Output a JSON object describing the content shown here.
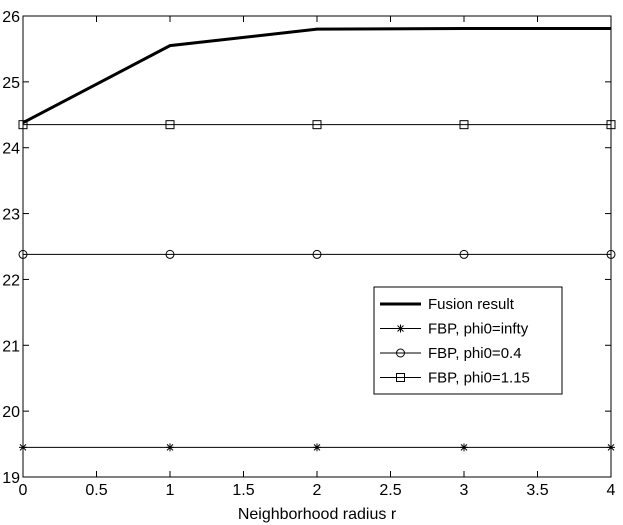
{
  "chart_data": {
    "type": "line",
    "xlabel": "Neighborhood radius r",
    "ylabel": "",
    "xlim": [
      0,
      4
    ],
    "ylim": [
      19,
      26
    ],
    "xticks": [
      "0",
      "0.5",
      "1",
      "1.5",
      "2",
      "2.5",
      "3",
      "3.5",
      "4"
    ],
    "yticks": [
      "19",
      "20",
      "21",
      "22",
      "23",
      "24",
      "25",
      "26"
    ],
    "grid": false,
    "legend_position": "lower-right",
    "x": [
      0,
      1,
      2,
      3,
      4
    ],
    "series": [
      {
        "name": "Fusion result",
        "marker": "none",
        "style": "thick",
        "values": [
          24.38,
          25.55,
          25.8,
          25.81,
          25.81
        ]
      },
      {
        "name": "FBP, phi0=infty",
        "marker": "star",
        "style": "thin",
        "values": [
          19.45,
          19.45,
          19.45,
          19.45,
          19.45
        ]
      },
      {
        "name": "FBP, phi0=0.4",
        "marker": "circle",
        "style": "thin",
        "values": [
          22.38,
          22.38,
          22.38,
          22.38,
          22.38
        ]
      },
      {
        "name": "FBP, phi0=1.15",
        "marker": "square",
        "style": "thin",
        "values": [
          24.35,
          24.35,
          24.35,
          24.35,
          24.35
        ]
      }
    ]
  }
}
